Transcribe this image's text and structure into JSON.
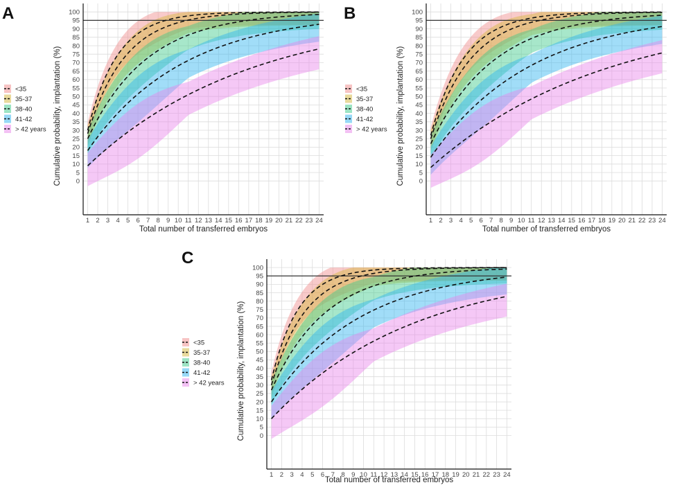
{
  "figure": {
    "panels": [
      "A",
      "B",
      "C"
    ],
    "xlabel": "Total number of transferred embryos",
    "ylabel": "Cumulative probability, implantation (%)",
    "legend": [
      "<35",
      "35-37",
      "38-40",
      "41-42",
      "> 42 years"
    ],
    "colors": {
      "<35": "#f08a8a",
      "35-37": "#d4b53a",
      "38-40": "#3cc98a",
      "41-42": "#2fb3f0",
      "> 42 years": "#e884ea",
      "threshold": "#333333",
      "median_line": "#111111"
    }
  },
  "chart_data": [
    {
      "panel": "A",
      "type": "line",
      "xlabel": "Total number of transferred embryos",
      "ylabel": "Cumulative probability, implantation (%)",
      "x": [
        1,
        2,
        3,
        4,
        5,
        6,
        7,
        8,
        9,
        10,
        11,
        12,
        13,
        14,
        15,
        16,
        17,
        18,
        19,
        20,
        21,
        22,
        23,
        24
      ],
      "ylim": [
        -20,
        105
      ],
      "yticks": [
        0,
        5,
        10,
        15,
        20,
        25,
        30,
        35,
        40,
        45,
        50,
        55,
        60,
        65,
        70,
        75,
        80,
        85,
        90,
        95,
        100
      ],
      "hline": 95,
      "grid": true,
      "legend_position": "left",
      "series": [
        {
          "name": "<35",
          "start": 30,
          "rate": 0.34,
          "band": 6
        },
        {
          "name": "35-37",
          "start": 28,
          "rate": 0.27,
          "band": 6
        },
        {
          "name": "38-40",
          "start": 25,
          "rate": 0.17,
          "band": 7
        },
        {
          "name": "41-42",
          "start": 18,
          "rate": 0.105,
          "band": 9
        },
        {
          "name": "> 42 years",
          "start": 9,
          "rate": 0.062,
          "band": 11
        }
      ]
    },
    {
      "panel": "B",
      "type": "line",
      "xlabel": "Total number of transferred embryos",
      "ylabel": "Cumulative probability, implantation (%)",
      "x": [
        1,
        2,
        3,
        4,
        5,
        6,
        7,
        8,
        9,
        10,
        11,
        12,
        13,
        14,
        15,
        16,
        17,
        18,
        19,
        20,
        21,
        22,
        23,
        24
      ],
      "ylim": [
        -20,
        105
      ],
      "yticks": [
        0,
        5,
        10,
        15,
        20,
        25,
        30,
        35,
        40,
        45,
        50,
        55,
        60,
        65,
        70,
        75,
        80,
        85,
        90,
        95,
        100
      ],
      "hline": 95,
      "grid": true,
      "legend_position": "left",
      "series": [
        {
          "name": "<35",
          "start": 27,
          "rate": 0.3,
          "band": 6
        },
        {
          "name": "35-37",
          "start": 25,
          "rate": 0.25,
          "band": 6
        },
        {
          "name": "38-40",
          "start": 22,
          "rate": 0.16,
          "band": 7
        },
        {
          "name": "41-42",
          "start": 14,
          "rate": 0.1,
          "band": 9
        },
        {
          "name": "> 42 years",
          "start": 8,
          "rate": 0.058,
          "band": 11
        }
      ]
    },
    {
      "panel": "C",
      "type": "line",
      "xlabel": "Total number of transferred embryos",
      "ylabel": "Cumulative probability, implantation (%)",
      "x": [
        1,
        2,
        3,
        4,
        5,
        6,
        7,
        8,
        9,
        10,
        11,
        12,
        13,
        14,
        15,
        16,
        17,
        18,
        19,
        20,
        21,
        22,
        23,
        24
      ],
      "ylim": [
        -20,
        105
      ],
      "yticks": [
        0,
        5,
        10,
        15,
        20,
        25,
        30,
        35,
        40,
        45,
        50,
        55,
        60,
        65,
        70,
        75,
        80,
        85,
        90,
        95,
        100
      ],
      "hline": 95,
      "grid": true,
      "legend_position": "left",
      "series": [
        {
          "name": "<35",
          "start": 33,
          "rate": 0.38,
          "band": 6
        },
        {
          "name": "35-37",
          "start": 30,
          "rate": 0.3,
          "band": 6
        },
        {
          "name": "38-40",
          "start": 27,
          "rate": 0.19,
          "band": 7
        },
        {
          "name": "41-42",
          "start": 20,
          "rate": 0.115,
          "band": 9
        },
        {
          "name": "> 42 years",
          "start": 10,
          "rate": 0.072,
          "band": 11
        }
      ]
    }
  ]
}
